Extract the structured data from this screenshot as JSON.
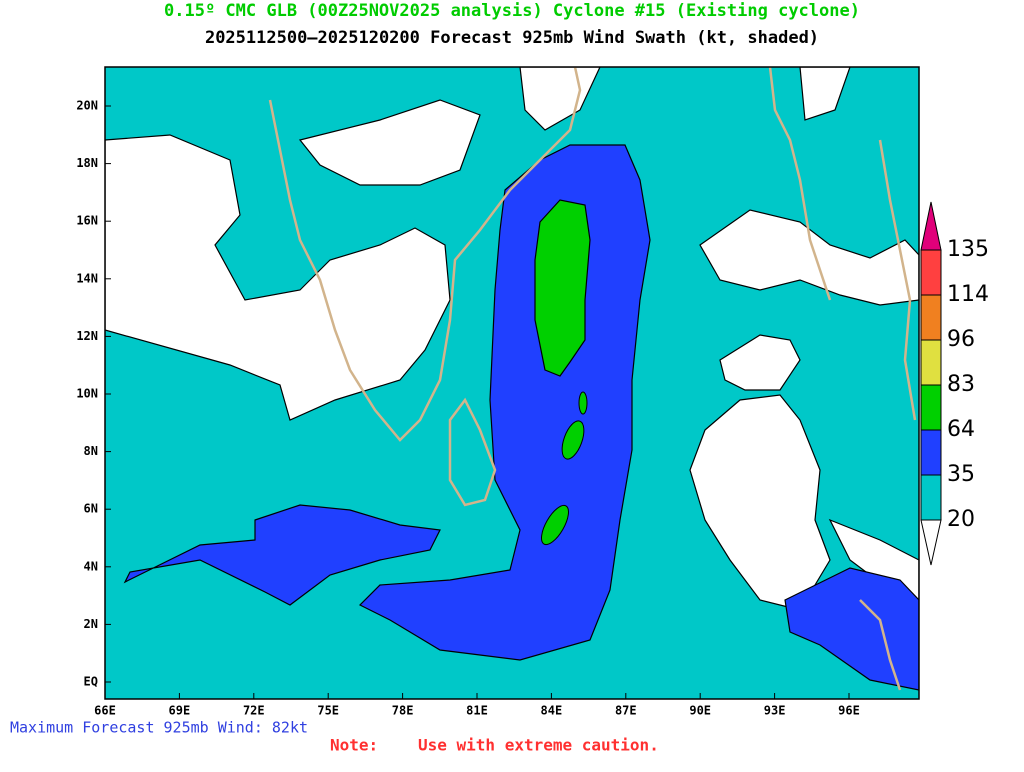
{
  "header": {
    "title": "0.15º CMC GLB (00Z25NOV2025 analysis) Cyclone #15 (Existing cyclone)",
    "subtitle": "2025112500–2025120200 Forecast 925mb Wind Swath (kt, shaded)"
  },
  "map": {
    "lon_ticks": [
      "66E",
      "69E",
      "72E",
      "75E",
      "78E",
      "81E",
      "84E",
      "87E",
      "90E",
      "93E",
      "96E"
    ],
    "lat_ticks": [
      "EQ",
      "2N",
      "4N",
      "6N",
      "8N",
      "10N",
      "12N",
      "14N",
      "16N",
      "18N",
      "20N"
    ]
  },
  "colorbar": {
    "levels": [
      20,
      35,
      64,
      83,
      96,
      114,
      135
    ],
    "colors": [
      "#00c8c8",
      "#2040ff",
      "#00d000",
      "#e0e040",
      "#f08020",
      "#ff4040"
    ],
    "above_color": "#e0007a",
    "below_color": "#ffffff"
  },
  "footer": {
    "max_wind": "Maximum Forecast 925mb Wind: 82kt",
    "note_label": "Note:",
    "note": "Use with extreme caution."
  }
}
